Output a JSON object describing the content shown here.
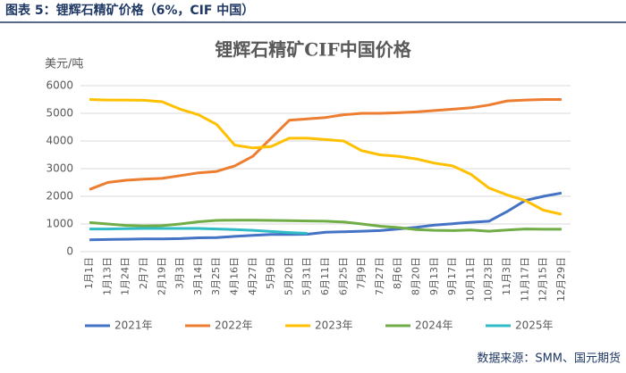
{
  "report_title": "图表 5：锂辉石精矿价格（6%，CIF 中国）",
  "source": "数据来源：SMM、国元期货",
  "chart_data": {
    "type": "line",
    "title": "锂辉石精矿CIF中国价格",
    "y_label": "美元/吨",
    "categories": [
      "1月1日",
      "1月13日",
      "1月24日",
      "2月7日",
      "2月19日",
      "3月3日",
      "3月14日",
      "3月25日",
      "4月16日",
      "4月27日",
      "5月9日",
      "5月20日",
      "5月31日",
      "6月11日",
      "6月25日",
      "7月9日",
      "7月27日",
      "8月6日",
      "8月20日",
      "9月13日",
      "9月17日",
      "10月11日",
      "10月23日",
      "11月3日",
      "11月17日",
      "12月15日",
      "12月29日"
    ],
    "series": [
      {
        "name": "2021年",
        "color": "#4472c4",
        "values": [
          430,
          440,
          450,
          460,
          460,
          470,
          500,
          510,
          550,
          590,
          620,
          620,
          630,
          700,
          720,
          740,
          760,
          820,
          880,
          960,
          1010,
          1060,
          1100,
          1450,
          1850,
          2000,
          2120
        ]
      },
      {
        "name": "2022年",
        "color": "#ed7d31",
        "values": [
          2250,
          2500,
          2580,
          2620,
          2650,
          2750,
          2850,
          2900,
          3100,
          3450,
          4100,
          4750,
          4800,
          4850,
          4950,
          5000,
          5000,
          5020,
          5050,
          5100,
          5150,
          5200,
          5300,
          5450,
          5480,
          5500,
          5500
        ]
      },
      {
        "name": "2023年",
        "color": "#ffc000",
        "values": [
          5500,
          5480,
          5480,
          5470,
          5420,
          5150,
          4950,
          4600,
          3850,
          3750,
          3800,
          4100,
          4100,
          4050,
          4000,
          3650,
          3500,
          3450,
          3350,
          3200,
          3100,
          2800,
          2300,
          2050,
          1850,
          1500,
          1350
        ]
      },
      {
        "name": "2024年",
        "color": "#70ad47",
        "values": [
          1050,
          1000,
          950,
          930,
          940,
          1000,
          1080,
          1130,
          1140,
          1140,
          1130,
          1120,
          1110,
          1100,
          1070,
          1000,
          920,
          870,
          800,
          770,
          760,
          780,
          740,
          780,
          820,
          810,
          810
        ]
      },
      {
        "name": "2025年",
        "color": "#2fbcc6",
        "values": [
          820,
          820,
          830,
          840,
          840,
          840,
          840,
          820,
          800,
          770,
          730,
          690,
          660,
          null,
          null,
          null,
          null,
          null,
          null,
          null,
          null,
          null,
          null,
          null,
          null,
          null,
          null
        ]
      }
    ],
    "ylim": [
      0,
      6000
    ],
    "yticks": [
      0,
      1000,
      2000,
      3000,
      4000,
      5000,
      6000
    ],
    "grid": true,
    "legend": "bottom"
  }
}
